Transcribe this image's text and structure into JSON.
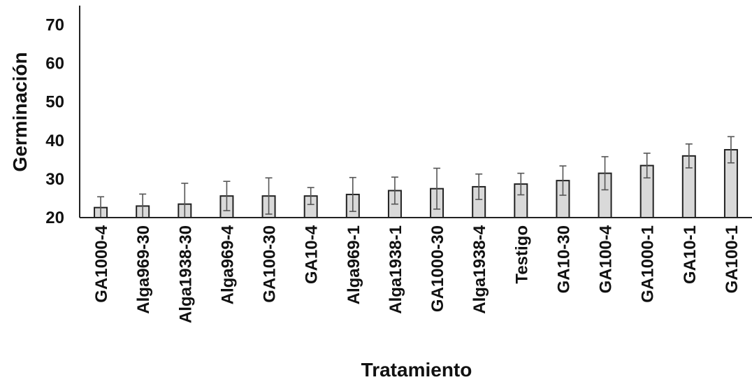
{
  "chart_data": {
    "type": "bar",
    "title": "",
    "xlabel": "Tratamiento",
    "ylabel": "Germinación",
    "ylim": [
      20,
      75
    ],
    "yticks": [
      20,
      30,
      40,
      50,
      60,
      70
    ],
    "grid": false,
    "legend": "none",
    "categories": [
      "GA1000-4",
      "Alga969-30",
      "Alga1938-30",
      "Alga969-4",
      "GA100-30",
      "GA10-4",
      "Alga969-1",
      "Alga1938-1",
      "GA1000-30",
      "Alga1938-4",
      "Testigo",
      "GA10-30",
      "GA100-4",
      "GA1000-1",
      "GA10-1",
      "GA100-1"
    ],
    "values": [
      22.6,
      23.0,
      23.5,
      25.6,
      25.6,
      25.6,
      26.0,
      27.0,
      27.5,
      28.0,
      28.7,
      29.6,
      31.5,
      33.5,
      36.0,
      37.6
    ],
    "errors": [
      2.8,
      3.1,
      5.4,
      3.8,
      4.7,
      2.2,
      4.4,
      3.5,
      5.3,
      3.3,
      2.8,
      3.8,
      4.3,
      3.2,
      3.1,
      3.4
    ],
    "colors": {
      "bar": "#d9d9d9",
      "bar_stroke": "#222222",
      "error": "#555555"
    }
  }
}
